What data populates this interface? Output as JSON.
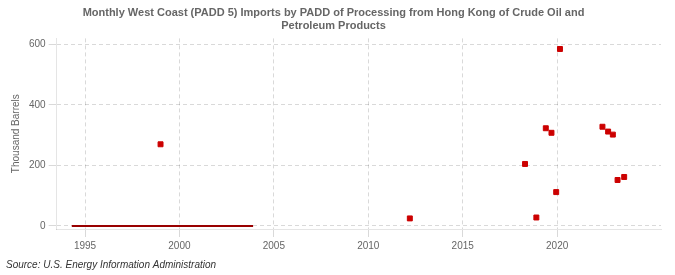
{
  "chart_data": {
    "type": "scatter",
    "title": "Monthly West Coast (PADD 5) Imports by PADD of Processing from Hong Kong of Crude Oil and\nPetroleum Products",
    "ylabel": "Thousand Barrels",
    "annotations": [
      "Source: U.S. Energy Information Administration"
    ],
    "xlim": [
      1993.5,
      2025.5
    ],
    "xticks": [
      1995,
      2000,
      2005,
      2010,
      2015,
      2020
    ],
    "ylim": [
      -10,
      620
    ],
    "yticks": [
      0,
      200,
      400,
      600
    ],
    "grid": true,
    "series": [
      {
        "type": "line",
        "color": "#990000",
        "line_style": "solid",
        "x": [
          1994.3,
          2003.9
        ],
        "values": [
          0,
          0
        ]
      },
      {
        "type": "scatter",
        "color": "#cc0000",
        "marker": "square",
        "x": [
          1999.0,
          2012.2,
          2018.3,
          2018.9,
          2019.4,
          2019.7,
          2019.95,
          2020.15,
          2022.4,
          2022.7,
          2022.95,
          2023.2,
          2023.55
        ],
        "values": [
          270,
          25,
          205,
          28,
          323,
          308,
          112,
          585,
          328,
          312,
          302,
          152,
          162
        ]
      }
    ]
  }
}
